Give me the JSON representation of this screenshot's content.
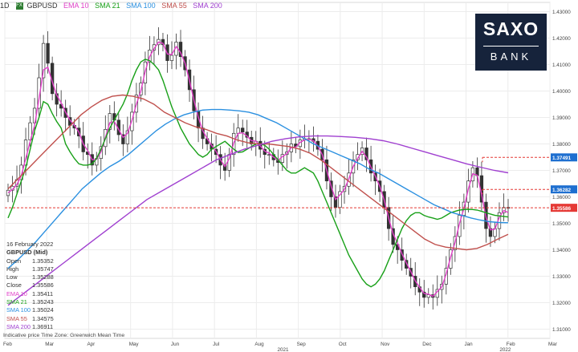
{
  "header": {
    "timeframe": "1D",
    "symbol": "GBPUSD",
    "badge": "FX",
    "indicators": [
      {
        "label": "EMA 10",
        "color": "#e040c8"
      },
      {
        "label": "SMA 21",
        "color": "#18a018"
      },
      {
        "label": "SMA 100",
        "color": "#2b90e0"
      },
      {
        "label": "SMA 55",
        "color": "#c0504d"
      },
      {
        "label": "SMA 200",
        "color": "#a040d0"
      }
    ]
  },
  "logo": {
    "line1": "SAXO",
    "line2": "BANK"
  },
  "legend": {
    "date": "16 February 2022",
    "title": "GBPUSD (Mid)",
    "rows": [
      {
        "label": "Open",
        "value": "1.35352",
        "color": "#333333"
      },
      {
        "label": "High",
        "value": "1.35747",
        "color": "#333333"
      },
      {
        "label": "Low",
        "value": "1.35288",
        "color": "#333333"
      },
      {
        "label": "Close",
        "value": "1.35586",
        "color": "#333333"
      },
      {
        "label": "EMA 10",
        "value": "1.35411",
        "color": "#e040c8"
      },
      {
        "label": "SMA 21",
        "value": "1.35243",
        "color": "#18a018"
      },
      {
        "label": "SMA 100",
        "value": "1.35024",
        "color": "#2b90e0"
      },
      {
        "label": "SMA 55",
        "value": "1.34575",
        "color": "#c0504d"
      },
      {
        "label": "SMA 200",
        "value": "1.36911",
        "color": "#a040d0"
      }
    ]
  },
  "footer": {
    "text": "Indicative price   Time Zone: Greenwich Mean Time"
  },
  "chart_data": {
    "type": "candlestick",
    "ylim": [
      1.3065,
      1.4335
    ],
    "y_ticks": [
      "1.43000",
      "1.42000",
      "1.41000",
      "1.40000",
      "1.39000",
      "1.38000",
      "1.37000",
      "1.36000",
      "1.35000",
      "1.34000",
      "1.33000",
      "1.32000",
      "1.31000"
    ],
    "x_ticks": [
      "Feb",
      "Mar",
      "Apr",
      "May",
      "Jun",
      "Jul",
      "Aug",
      "Sep",
      "Oct",
      "Nov",
      "Dec",
      "Jan",
      "Feb",
      "Mar"
    ],
    "x_year_labels": [
      "2021",
      "2022"
    ],
    "grid": true,
    "price_markers": [
      {
        "value": 1.37491,
        "label": "1.37491",
        "color": "#e53935",
        "dashed": true
      },
      {
        "value": 1.36282,
        "label": "1.36282",
        "color": "#e53935",
        "dashed": true
      },
      {
        "value": 1.35586,
        "label": "1.35586",
        "color": "#e53935",
        "dashed": true,
        "current": true
      }
    ],
    "close_series": [
      1.3625,
      1.364,
      1.3665,
      1.372,
      1.3815,
      1.388,
      1.3935,
      1.405,
      1.418,
      1.4105,
      1.399,
      1.395,
      1.3935,
      1.39,
      1.387,
      1.386,
      1.383,
      1.377,
      1.376,
      1.372,
      1.3745,
      1.379,
      1.3855,
      1.3915,
      1.389,
      1.3835,
      1.38,
      1.385,
      1.392,
      1.3985,
      1.403,
      1.411,
      1.4155,
      1.4175,
      1.4195,
      1.4175,
      1.4115,
      1.4135,
      1.4185,
      1.413,
      1.408,
      1.4005,
      1.3925,
      1.386,
      1.382,
      1.38,
      1.378,
      1.376,
      1.372,
      1.37,
      1.376,
      1.384,
      1.386,
      1.3845,
      1.3825,
      1.38,
      1.381,
      1.378,
      1.376,
      1.376,
      1.374,
      1.373,
      1.376,
      1.377,
      1.38,
      1.379,
      1.3815,
      1.382,
      1.382,
      1.381,
      1.378,
      1.374,
      1.366,
      1.36,
      1.356,
      1.362,
      1.364,
      1.369,
      1.374,
      1.376,
      1.3785,
      1.374,
      1.369,
      1.366,
      1.362,
      1.356,
      1.348,
      1.342,
      1.34,
      1.336,
      1.333,
      1.33,
      1.326,
      1.324,
      1.322,
      1.323,
      1.322,
      1.325,
      1.327,
      1.333,
      1.34,
      1.345,
      1.353,
      1.358,
      1.366,
      1.371,
      1.368,
      1.358,
      1.348,
      1.345,
      1.348,
      1.354,
      1.356,
      1.3559
    ],
    "series": [
      {
        "name": "EMA 10",
        "color": "#e040c8",
        "values": [
          1.3615,
          1.3628,
          1.3646,
          1.368,
          1.3745,
          1.381,
          1.387,
          1.397,
          1.408,
          1.409,
          1.4035,
          1.3985,
          1.3955,
          1.392,
          1.389,
          1.387,
          1.3845,
          1.38,
          1.3775,
          1.374,
          1.3742,
          1.377,
          1.3825,
          1.388,
          1.3885,
          1.3855,
          1.3825,
          1.384,
          1.389,
          1.395,
          1.4,
          1.4075,
          1.413,
          1.416,
          1.4185,
          1.418,
          1.414,
          1.4138,
          1.4168,
          1.4145,
          1.4105,
          1.404,
          1.3965,
          1.39,
          1.385,
          1.382,
          1.3795,
          1.3772,
          1.374,
          1.3715,
          1.3745,
          1.3805,
          1.384,
          1.3842,
          1.383,
          1.3812,
          1.3811,
          1.3792,
          1.3773,
          1.3765,
          1.375,
          1.3738,
          1.3752,
          1.3763,
          1.3786,
          1.3788,
          1.3806,
          1.3815,
          1.3818,
          1.3812,
          1.3792,
          1.376,
          1.37,
          1.364,
          1.359,
          1.3608,
          1.3628,
          1.3668,
          1.3715,
          1.3745,
          1.3772,
          1.375,
          1.3712,
          1.3678,
          1.364,
          1.3588,
          1.352,
          1.346,
          1.3425,
          1.3385,
          1.335,
          1.3318,
          1.3283,
          1.3258,
          1.3235,
          1.3232,
          1.3224,
          1.3242,
          1.326,
          1.3308,
          1.3372,
          1.3427,
          1.35,
          1.3556,
          1.363,
          1.3687,
          1.3682,
          1.361,
          1.3523,
          1.3475,
          1.3478,
          1.3523,
          1.3548,
          1.3541
        ]
      },
      {
        "name": "SMA 21",
        "color": "#18a018",
        "values": [
          1.352,
          1.356,
          1.361,
          1.366,
          1.371,
          1.378,
          1.385,
          1.39,
          1.396,
          1.395,
          1.3915,
          1.3885,
          1.386,
          1.38,
          1.377,
          1.3745,
          1.3725,
          1.372,
          1.372,
          1.3725,
          1.3745,
          1.378,
          1.382,
          1.386,
          1.389,
          1.392,
          1.395,
          1.399,
          1.404,
          1.408,
          1.411,
          1.412,
          1.4115,
          1.41,
          1.408,
          1.404,
          1.399,
          1.394,
          1.39,
          1.386,
          1.383,
          1.38,
          1.378,
          1.376,
          1.375,
          1.376,
          1.378,
          1.379,
          1.38,
          1.381,
          1.3795,
          1.378,
          1.3768,
          1.377,
          1.378,
          1.379,
          1.38,
          1.38,
          1.3795,
          1.378,
          1.376,
          1.374,
          1.372,
          1.37,
          1.369,
          1.369,
          1.37,
          1.371,
          1.37,
          1.369,
          1.366,
          1.362,
          1.358,
          1.354,
          1.35,
          1.346,
          1.342,
          1.338,
          1.335,
          1.332,
          1.329,
          1.327,
          1.326,
          1.327,
          1.329,
          1.332,
          1.336,
          1.34,
          1.344,
          1.348,
          1.351,
          1.353,
          1.354,
          1.354,
          1.353,
          1.3524,
          1.352,
          1.3515,
          1.352,
          1.353,
          1.354,
          1.3545,
          1.355,
          1.3552,
          1.3553,
          1.3552,
          1.355,
          1.3545,
          1.354,
          1.3535,
          1.353,
          1.3528,
          1.3526,
          1.3524
        ]
      },
      {
        "name": "SMA 100",
        "color": "#2b90e0",
        "values": [
          1.333,
          1.336,
          1.3395,
          1.343,
          1.347,
          1.351,
          1.355,
          1.359,
          1.363,
          1.366,
          1.369,
          1.3715,
          1.3735,
          1.376,
          1.379,
          1.382,
          1.385,
          1.3875,
          1.3895,
          1.391,
          1.392,
          1.3928,
          1.393,
          1.393,
          1.3928,
          1.3925,
          1.392,
          1.391,
          1.3895,
          1.388,
          1.386,
          1.384,
          1.382,
          1.38,
          1.3785,
          1.377,
          1.3755,
          1.374,
          1.3725,
          1.3705,
          1.369,
          1.367,
          1.365,
          1.363,
          1.361,
          1.359,
          1.357,
          1.3555,
          1.354,
          1.353,
          1.352,
          1.3512,
          1.3506,
          1.3503,
          1.3502
        ]
      },
      {
        "name": "SMA 55",
        "color": "#c0504d",
        "values": [
          1.363,
          1.367,
          1.371,
          1.375,
          1.379,
          1.383,
          1.387,
          1.391,
          1.394,
          1.3965,
          1.398,
          1.3985,
          1.398,
          1.397,
          1.395,
          1.392,
          1.39,
          1.388,
          1.3865,
          1.3855,
          1.384,
          1.383,
          1.3815,
          1.3805,
          1.38,
          1.38,
          1.3795,
          1.379,
          1.378,
          1.3765,
          1.374,
          1.371,
          1.368,
          1.365,
          1.362,
          1.359,
          1.356,
          1.353,
          1.35,
          1.347,
          1.344,
          1.342,
          1.341,
          1.3405,
          1.34,
          1.3405,
          1.342,
          1.344,
          1.3458
        ]
      },
      {
        "name": "SMA 200",
        "color": "#a040d0",
        "values": [
          1.319,
          1.323,
          1.327,
          1.331,
          1.335,
          1.339,
          1.343,
          1.347,
          1.351,
          1.355,
          1.359,
          1.362,
          1.365,
          1.368,
          1.371,
          1.374,
          1.376,
          1.378,
          1.3795,
          1.381,
          1.382,
          1.3827,
          1.383,
          1.383,
          1.3828,
          1.3825,
          1.382,
          1.3812,
          1.38,
          1.3785,
          1.377,
          1.3755,
          1.374,
          1.3725,
          1.3712,
          1.37,
          1.3691
        ]
      }
    ]
  }
}
